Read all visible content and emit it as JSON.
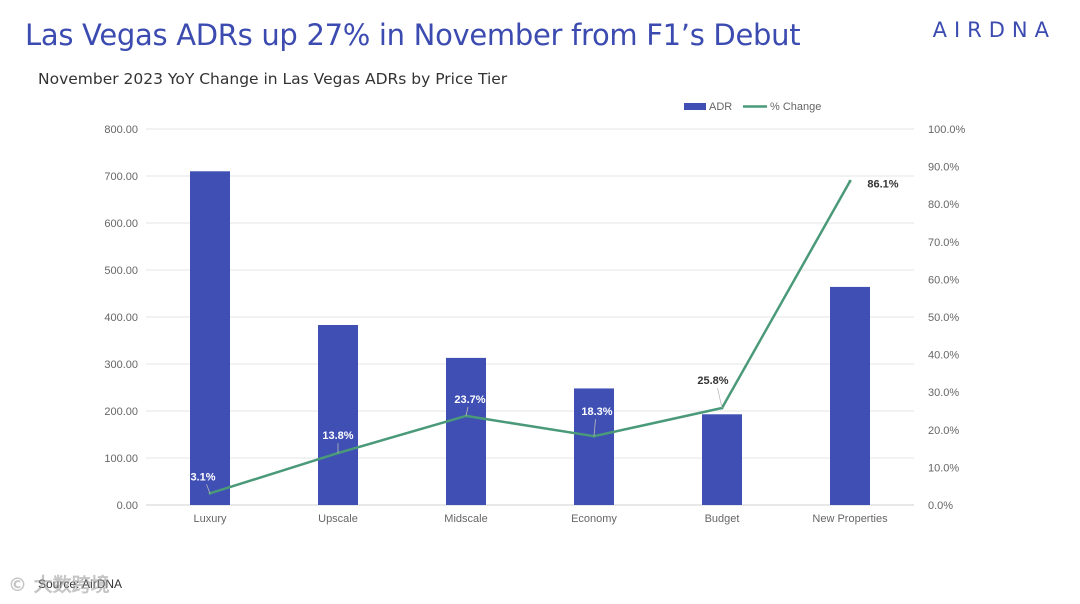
{
  "header": {
    "title": "Las Vegas ADRs up 27% in November from F1’s Debut",
    "logo_text": "AIRDNA"
  },
  "footer": {
    "source": "Source: AirDNA",
    "watermark": "© 大数跨境"
  },
  "chart_data": {
    "type": "bar",
    "title": "November 2023 YoY Change in Las Vegas ADRs by Price Tier",
    "categories": [
      "Luxury",
      "Upscale",
      "Midscale",
      "Economy",
      "Budget",
      "New Properties"
    ],
    "series": [
      {
        "name": "ADR",
        "type": "bar",
        "axis": "left",
        "color": "#3f4fb3",
        "values": [
          710,
          383,
          313,
          248,
          193,
          464
        ]
      },
      {
        "name": "% Change",
        "type": "line",
        "axis": "right",
        "color": "#4a9a7a",
        "values": [
          3.1,
          13.8,
          23.7,
          18.3,
          25.8,
          86.1
        ],
        "labels": [
          "3.1%",
          "13.8%",
          "23.7%",
          "18.3%",
          "25.8%",
          "86.1%"
        ]
      }
    ],
    "y_left": {
      "min": 0,
      "max": 800,
      "step": 100,
      "tick_labels": [
        "0.00",
        "100.00",
        "200.00",
        "300.00",
        "400.00",
        "500.00",
        "600.00",
        "700.00",
        "800.00"
      ]
    },
    "y_right": {
      "min": 0,
      "max": 100,
      "step": 10,
      "tick_labels": [
        "0.0%",
        "10.0%",
        "20.0%",
        "30.0%",
        "40.0%",
        "50.0%",
        "60.0%",
        "70.0%",
        "80.0%",
        "90.0%",
        "100.0%"
      ]
    },
    "grid": true,
    "legend_position": "top-right"
  }
}
